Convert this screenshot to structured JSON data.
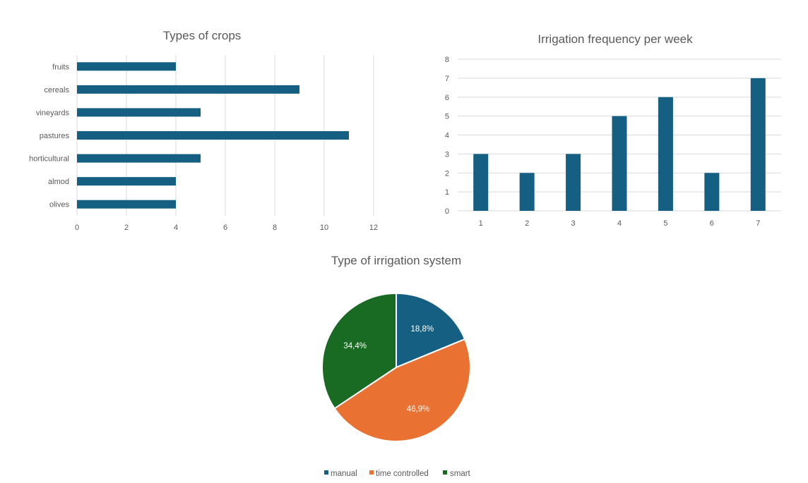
{
  "colors": {
    "blue": "#156082",
    "orange": "#E97132",
    "green": "#196B24",
    "grid": "#D9D9D9"
  },
  "chart_data": [
    {
      "type": "bar",
      "orientation": "horizontal",
      "title": "Types of crops",
      "categories": [
        "fruits",
        "cereals",
        "vineyards",
        "pastures",
        "horticultural",
        "almod",
        "olives"
      ],
      "values": [
        4,
        9,
        5,
        11,
        5,
        4,
        4
      ],
      "xlim": [
        0,
        12
      ],
      "xticks": [
        "0",
        "2",
        "4",
        "6",
        "8",
        "10",
        "12"
      ],
      "grid": true
    },
    {
      "type": "bar",
      "title": "Irrigation frequency per week",
      "categories": [
        "1",
        "2",
        "3",
        "4",
        "5",
        "6",
        "7"
      ],
      "values": [
        3,
        2,
        3,
        5,
        6,
        2,
        7
      ],
      "ylim": [
        0,
        8
      ],
      "yticks": [
        "0",
        "1",
        "2",
        "3",
        "4",
        "5",
        "6",
        "7",
        "8"
      ],
      "grid": true
    },
    {
      "type": "pie",
      "title": "Type of irrigation system",
      "labels": [
        "manual",
        "time controlled",
        "smart"
      ],
      "values": [
        18.8,
        46.9,
        34.4
      ],
      "data_labels": [
        "18,8%",
        "46,9%",
        "34,4%"
      ],
      "legend": "bottom"
    }
  ]
}
